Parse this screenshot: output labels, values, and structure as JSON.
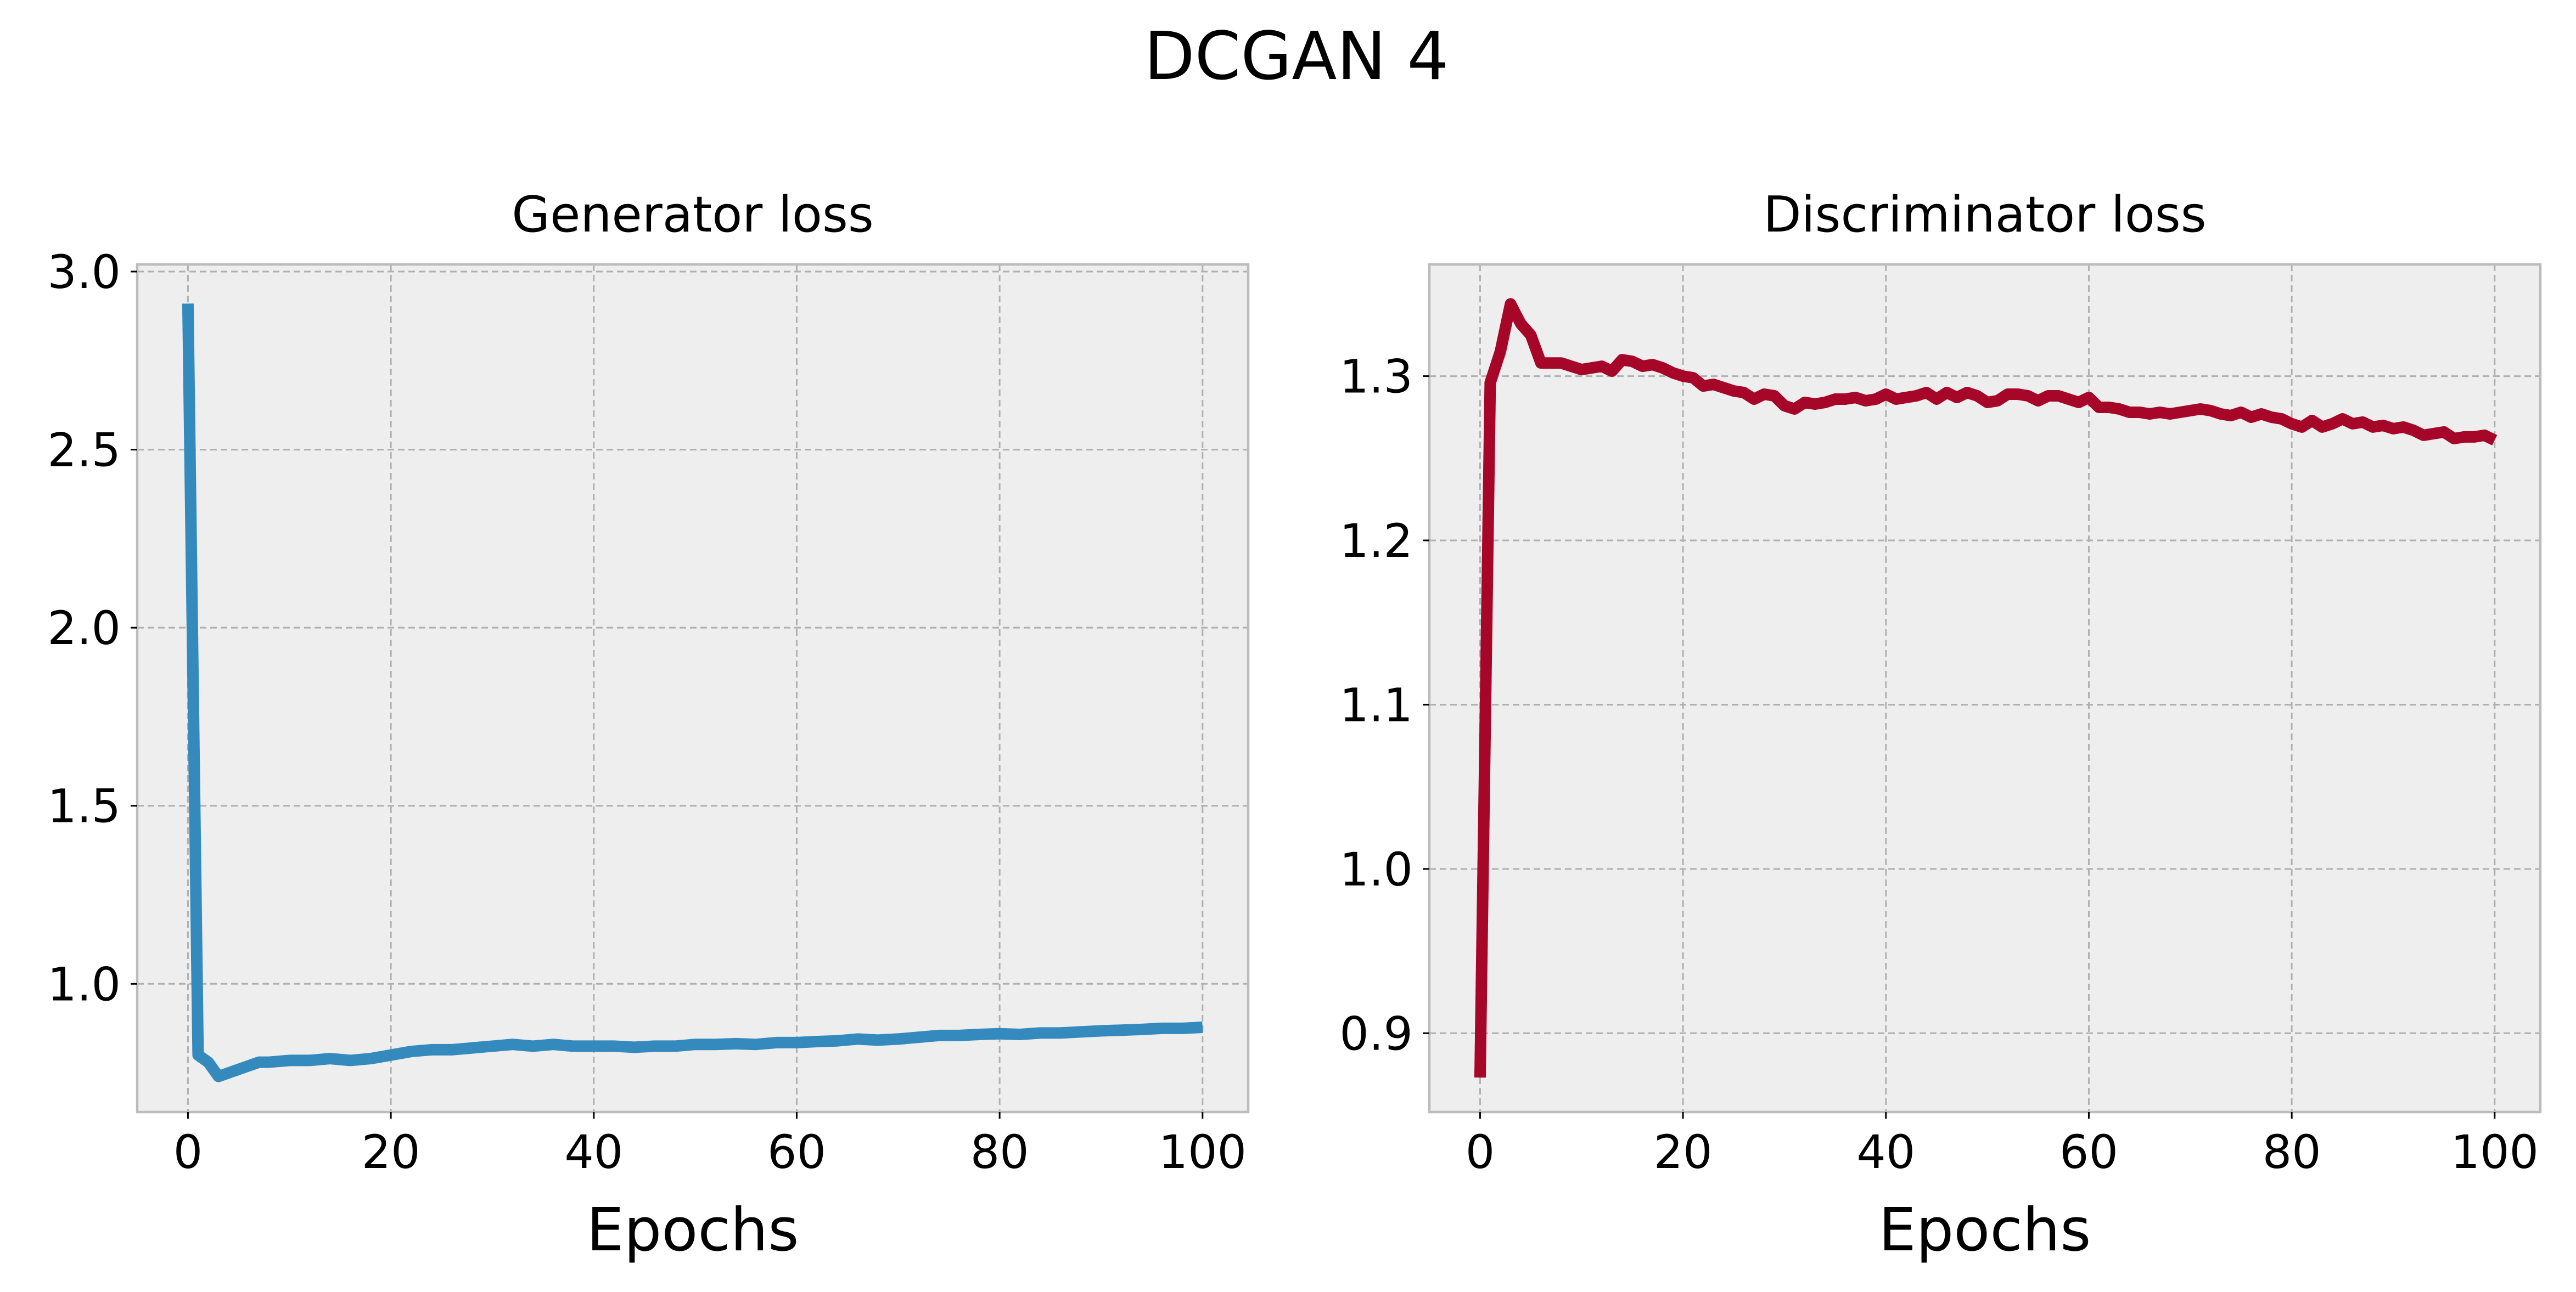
{
  "figure_title": "DCGAN 4",
  "chart_data": [
    {
      "type": "line",
      "title": "Generator loss",
      "xlabel": "Epochs",
      "ylabel": "",
      "xlim": [
        -5,
        104.5
      ],
      "ylim": [
        0.64,
        3.02
      ],
      "xticks": [
        0,
        20,
        40,
        60,
        80,
        100
      ],
      "yticks": [
        1.0,
        1.5,
        2.0,
        2.5,
        3.0
      ],
      "ytick_labels": [
        "1.0",
        "1.5",
        "2.0",
        "2.5",
        "3.0"
      ],
      "grid": true,
      "color": "#348abd",
      "background": "#eeeeee",
      "series": [
        {
          "x": [
            0,
            1,
            2,
            3,
            4,
            5,
            6,
            7,
            8,
            10,
            12,
            14,
            16,
            18,
            20,
            22,
            24,
            26,
            28,
            30,
            32,
            34,
            36,
            38,
            40,
            42,
            44,
            46,
            48,
            50,
            52,
            54,
            56,
            58,
            60,
            62,
            64,
            66,
            68,
            70,
            72,
            74,
            76,
            78,
            80,
            82,
            84,
            86,
            88,
            90,
            92,
            94,
            96,
            98,
            100
          ],
          "y": [
            2.91,
            0.8,
            0.78,
            0.74,
            0.75,
            0.76,
            0.77,
            0.78,
            0.78,
            0.785,
            0.785,
            0.79,
            0.785,
            0.79,
            0.8,
            0.81,
            0.815,
            0.815,
            0.82,
            0.825,
            0.83,
            0.825,
            0.83,
            0.825,
            0.825,
            0.825,
            0.822,
            0.825,
            0.825,
            0.83,
            0.83,
            0.832,
            0.83,
            0.835,
            0.835,
            0.838,
            0.84,
            0.845,
            0.842,
            0.845,
            0.85,
            0.855,
            0.855,
            0.858,
            0.86,
            0.858,
            0.862,
            0.862,
            0.865,
            0.868,
            0.87,
            0.872,
            0.875,
            0.875,
            0.878
          ]
        }
      ]
    },
    {
      "type": "line",
      "title": "Discriminator loss",
      "xlabel": "Epochs",
      "ylabel": "",
      "xlim": [
        -5,
        104.5
      ],
      "ylim": [
        0.852,
        1.368
      ],
      "xticks": [
        0,
        20,
        40,
        60,
        80,
        100
      ],
      "yticks": [
        0.9,
        1.0,
        1.1,
        1.2,
        1.3
      ],
      "ytick_labels": [
        "0.9",
        "1.0",
        "1.1",
        "1.2",
        "1.3"
      ],
      "grid": true,
      "color": "#a60628",
      "background": "#eeeeee",
      "series": [
        {
          "x": [
            0,
            1,
            2,
            3,
            4,
            5,
            6,
            7,
            8,
            10,
            12,
            13,
            14,
            15,
            16,
            17,
            18,
            19,
            20,
            21,
            22,
            23,
            24,
            25,
            26,
            27,
            28,
            29,
            30,
            31,
            32,
            33,
            34,
            35,
            36,
            37,
            38,
            39,
            40,
            41,
            42,
            43,
            44,
            45,
            46,
            47,
            48,
            49,
            50,
            51,
            52,
            53,
            54,
            55,
            56,
            57,
            58,
            59,
            60,
            61,
            62,
            63,
            64,
            65,
            66,
            67,
            68,
            69,
            70,
            71,
            72,
            73,
            74,
            75,
            76,
            77,
            78,
            79,
            80,
            81,
            82,
            83,
            84,
            85,
            86,
            87,
            88,
            89,
            90,
            91,
            92,
            93,
            94,
            95,
            96,
            97,
            98,
            99,
            100
          ],
          "y": [
            0.873,
            1.296,
            1.315,
            1.344,
            1.332,
            1.325,
            1.308,
            1.308,
            1.308,
            1.304,
            1.306,
            1.303,
            1.31,
            1.309,
            1.306,
            1.307,
            1.305,
            1.302,
            1.3,
            1.299,
            1.294,
            1.295,
            1.293,
            1.291,
            1.29,
            1.286,
            1.289,
            1.288,
            1.282,
            1.28,
            1.284,
            1.283,
            1.284,
            1.286,
            1.286,
            1.287,
            1.285,
            1.286,
            1.289,
            1.286,
            1.287,
            1.288,
            1.29,
            1.286,
            1.29,
            1.287,
            1.29,
            1.288,
            1.284,
            1.285,
            1.289,
            1.289,
            1.288,
            1.285,
            1.288,
            1.288,
            1.286,
            1.284,
            1.287,
            1.281,
            1.281,
            1.28,
            1.278,
            1.278,
            1.277,
            1.278,
            1.277,
            1.278,
            1.279,
            1.28,
            1.279,
            1.277,
            1.276,
            1.278,
            1.275,
            1.277,
            1.275,
            1.274,
            1.271,
            1.269,
            1.273,
            1.269,
            1.271,
            1.274,
            1.271,
            1.272,
            1.269,
            1.27,
            1.268,
            1.269,
            1.267,
            1.264,
            1.265,
            1.266,
            1.262,
            1.263,
            1.263,
            1.264,
            1.261
          ]
        }
      ]
    }
  ]
}
